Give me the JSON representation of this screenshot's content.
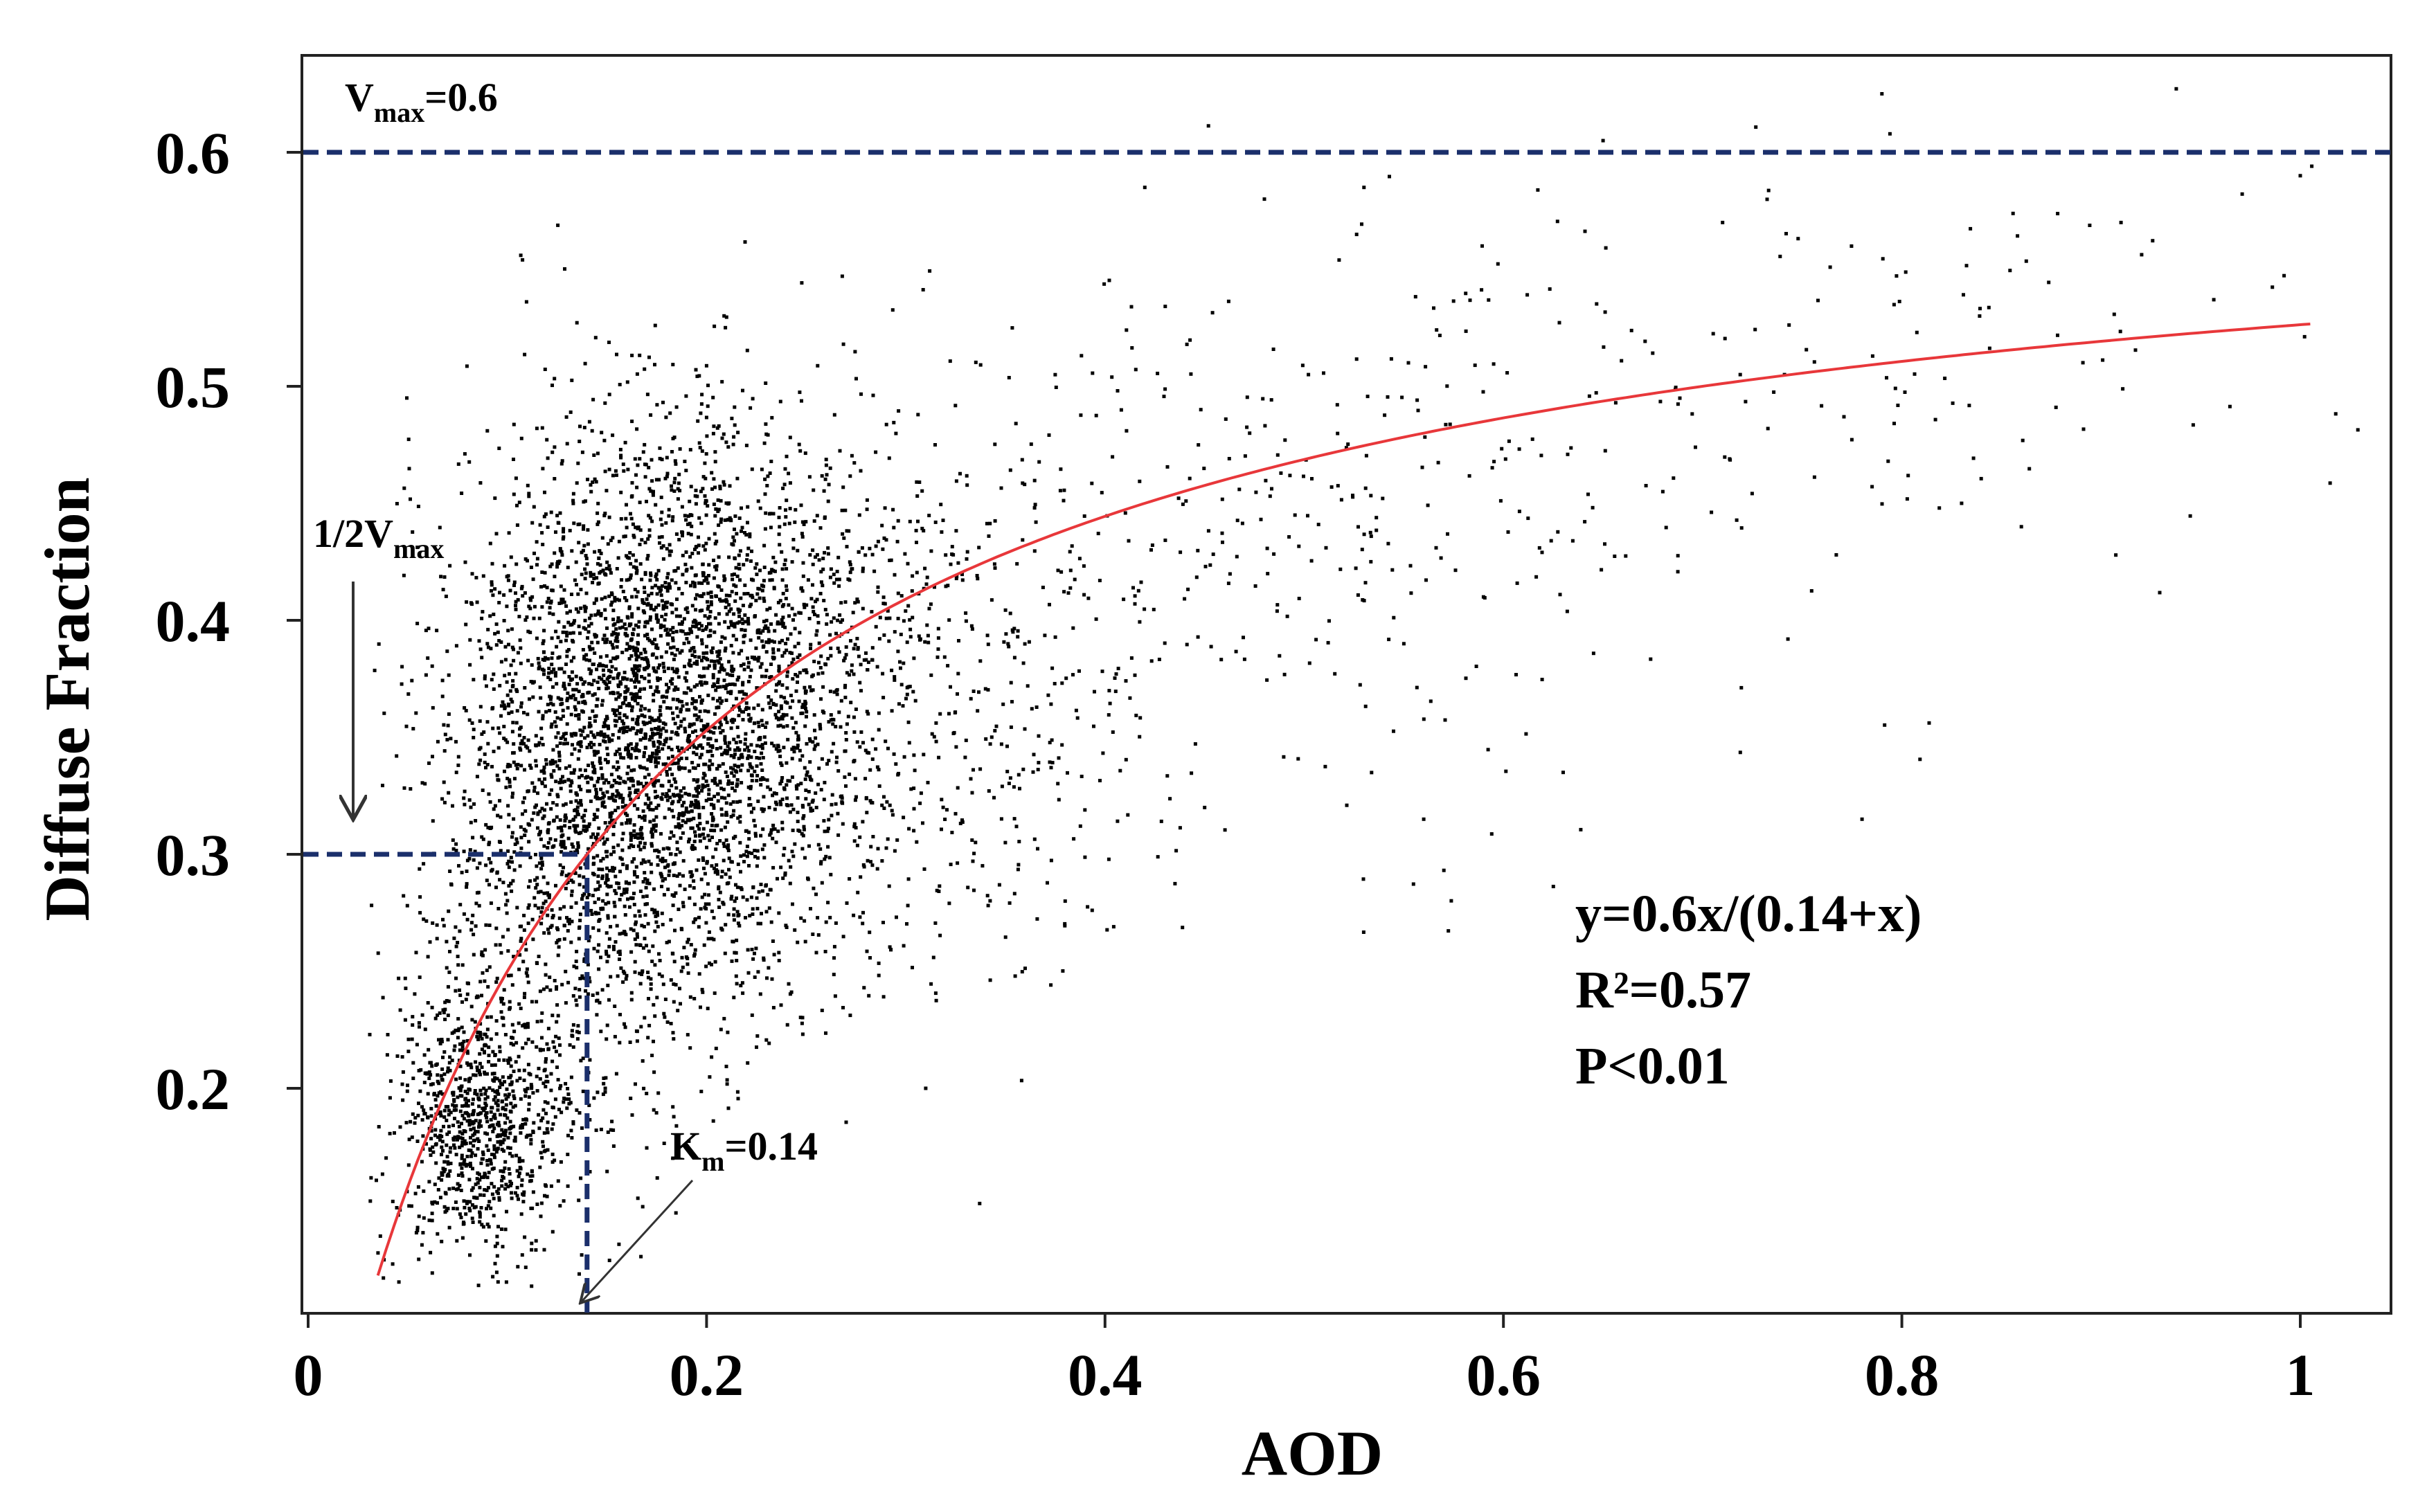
{
  "chart_data": {
    "type": "scatter",
    "title": "",
    "xlabel": "AOD",
    "ylabel": "Diffuse Fraction",
    "xlim": [
      0,
      1.05
    ],
    "ylim": [
      0.11,
      0.645
    ],
    "grid": false,
    "xticks": [
      {
        "value": 0,
        "label": "0"
      },
      {
        "value": 0.2,
        "label": "0.2"
      },
      {
        "value": 0.4,
        "label": "0.4"
      },
      {
        "value": 0.6,
        "label": "0.6"
      },
      {
        "value": 0.8,
        "label": "0.8"
      },
      {
        "value": 1.0,
        "label": "1"
      }
    ],
    "yticks": [
      {
        "value": 0.2,
        "label": "0.2"
      },
      {
        "value": 0.3,
        "label": "0.3"
      },
      {
        "value": 0.4,
        "label": "0.4"
      },
      {
        "value": 0.5,
        "label": "0.5"
      },
      {
        "value": 0.6,
        "label": "0.6"
      }
    ],
    "series": [
      {
        "name": "observations",
        "kind": "scatter",
        "color": "#000000",
        "clusters": [
          {
            "cx": 0.085,
            "cy": 0.185,
            "sx": 0.022,
            "sy": 0.028,
            "n": 900
          },
          {
            "cx": 0.185,
            "cy": 0.36,
            "sx": 0.05,
            "sy": 0.06,
            "n": 3400
          },
          {
            "cx": 0.13,
            "cy": 0.3,
            "sx": 0.035,
            "sy": 0.065,
            "n": 900
          },
          {
            "cx": 0.3,
            "cy": 0.37,
            "sx": 0.07,
            "sy": 0.06,
            "n": 650
          },
          {
            "cx": 0.5,
            "cy": 0.44,
            "sx": 0.12,
            "sy": 0.06,
            "n": 320
          },
          {
            "cx": 0.78,
            "cy": 0.52,
            "sx": 0.14,
            "sy": 0.05,
            "n": 130
          }
        ],
        "points": [
          [
            0.56,
            0.315
          ],
          [
            0.45,
            0.32
          ],
          [
            0.78,
            0.315
          ],
          [
            0.63,
            0.335
          ],
          [
            0.31,
            0.2
          ],
          [
            0.35,
            0.305
          ],
          [
            0.38,
            0.28
          ],
          [
            0.42,
            0.585
          ],
          [
            0.48,
            0.58
          ],
          [
            0.79,
            0.625
          ],
          [
            0.86,
            0.44
          ],
          [
            0.83,
            0.45
          ],
          [
            0.71,
            0.57
          ],
          [
            0.91,
            0.57
          ],
          [
            1.0,
            0.59
          ],
          [
            0.68,
            0.455
          ],
          [
            0.55,
            0.39
          ],
          [
            0.59,
            0.41
          ],
          [
            0.53,
            0.585
          ],
          [
            0.65,
            0.605
          ]
        ]
      },
      {
        "name": "fit",
        "kind": "line",
        "color": "#e8373a",
        "equation": {
          "vmax": 0.6,
          "km": 0.14
        },
        "x_range": [
          0.035,
          1.005
        ]
      }
    ],
    "reference_lines": [
      {
        "name": "vmax",
        "orientation": "horizontal",
        "value": 0.6,
        "color": "#1b2f6b"
      },
      {
        "name": "half-vmax",
        "orientation": "horizontal",
        "value": 0.3,
        "to_x": 0.14,
        "color": "#1b2f6b"
      },
      {
        "name": "km",
        "orientation": "vertical",
        "value": 0.14,
        "to_y": 0.3,
        "color": "#1b2f6b"
      }
    ],
    "annotations": {
      "vmax_label": {
        "main": "V",
        "sub": "max",
        "rest": "=0.6"
      },
      "half_vmax_label": {
        "main": "1/2V",
        "sub": "max"
      },
      "km_label": {
        "main": "K",
        "sub": "m",
        "rest": "=0.14"
      },
      "equation": "y=0.6x/(0.14+x)",
      "r2": "R²=0.57",
      "p": "P<0.01"
    }
  }
}
